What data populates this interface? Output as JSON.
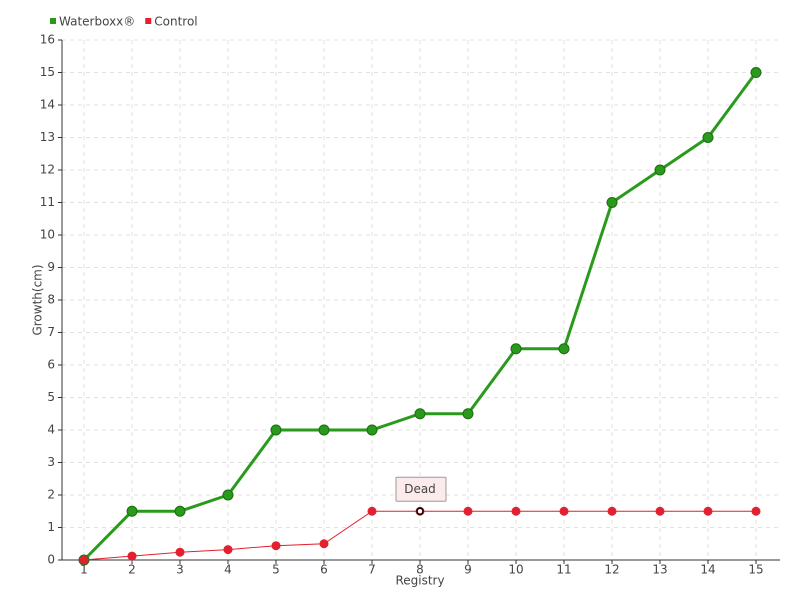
{
  "chart_data": {
    "type": "line",
    "categories": [
      "1",
      "2",
      "3",
      "4",
      "5",
      "6",
      "7",
      "8",
      "9",
      "10",
      "11",
      "12",
      "13",
      "14",
      "15"
    ],
    "series": [
      {
        "name": "Waterboxx®",
        "color": "#2a9a1c",
        "values": [
          0,
          1.5,
          1.5,
          2,
          4,
          4,
          4,
          4.5,
          4.5,
          6.5,
          6.5,
          11,
          12,
          13,
          15
        ]
      },
      {
        "name": "Control",
        "color": "#e2202e",
        "values": [
          0,
          0.12,
          0.24,
          0.32,
          0.44,
          0.5,
          1.5,
          1.5,
          1.5,
          1.5,
          1.5,
          1.5,
          1.5,
          1.5,
          1.5
        ]
      }
    ],
    "ylim": [
      0,
      16
    ],
    "yticks": [
      0,
      1,
      2,
      3,
      4,
      5,
      6,
      7,
      8,
      9,
      10,
      11,
      12,
      13,
      14,
      15,
      16
    ],
    "grid": true,
    "legend": "top-left",
    "x_label": "Registry",
    "y_label": "Growth(cm)",
    "annotation": {
      "text": "Dead",
      "category": "8",
      "series": "Control"
    }
  }
}
